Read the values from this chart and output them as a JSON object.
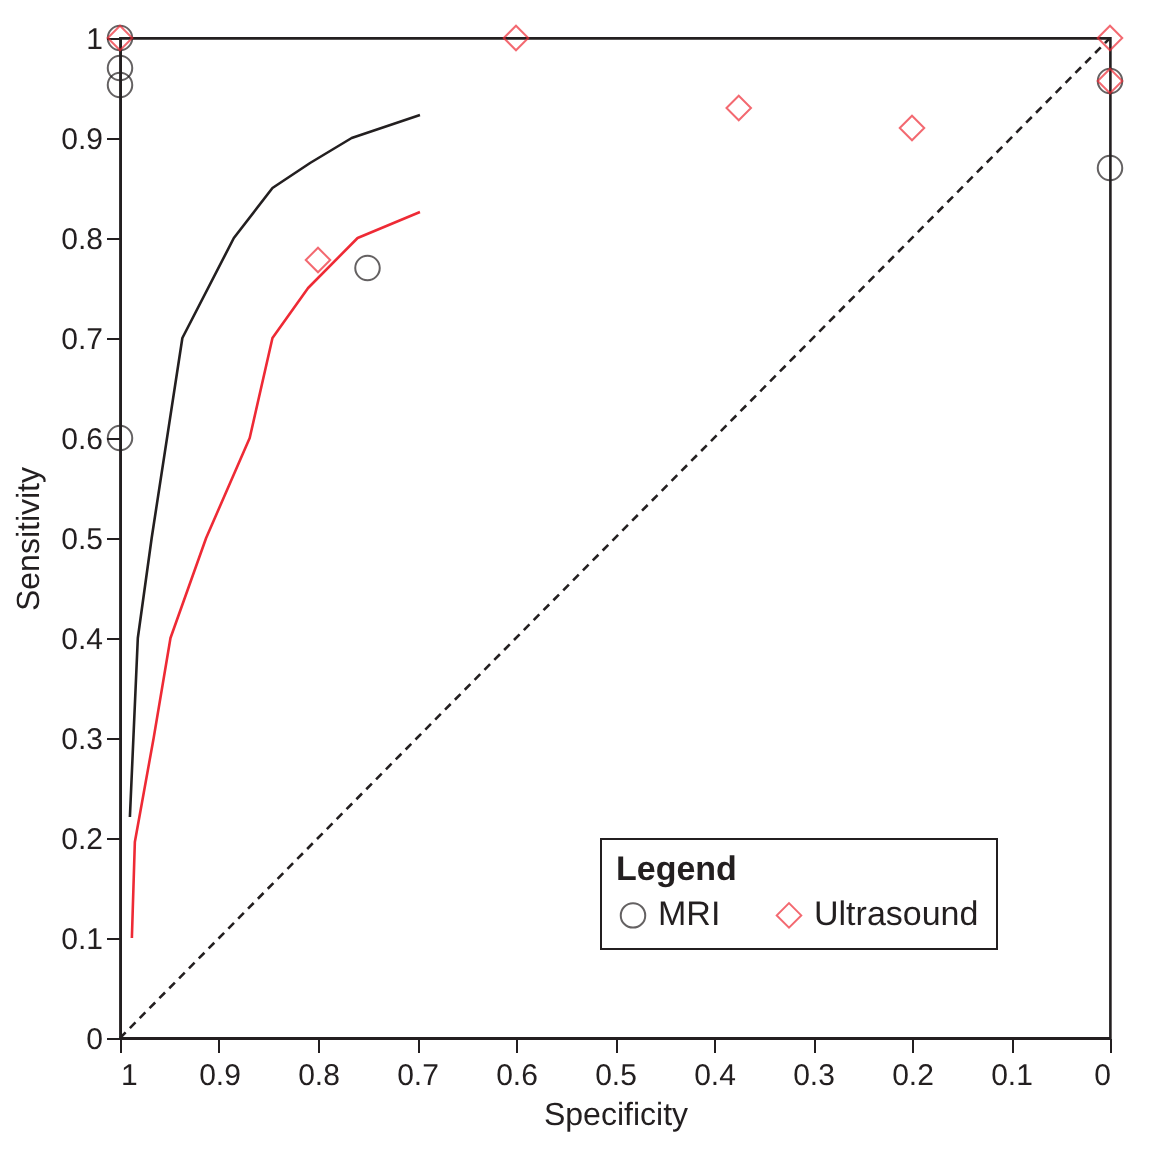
{
  "chart_data": {
    "type": "scatter",
    "xlabel": "Specificity",
    "ylabel": "Sensitivity",
    "legend_title": "Legend",
    "legend": "bottom right",
    "grid": false,
    "xlim": [
      1,
      0
    ],
    "xticks": [
      1,
      0.9,
      0.8,
      0.7,
      0.6,
      0.5,
      0.4,
      0.3,
      0.2,
      0.1,
      0
    ],
    "ylim": [
      0,
      1
    ],
    "yticks": [
      0,
      0.1,
      0.2,
      0.3,
      0.4,
      0.5,
      0.6,
      0.7,
      0.8,
      0.9,
      1
    ],
    "series": [
      {
        "name": "MRI",
        "marker": "circle",
        "color": "#231f20",
        "x": [
          1,
          1,
          1,
          1,
          0.75,
          0,
          0
        ],
        "values": [
          1,
          0.97,
          0.953,
          0.6,
          0.77,
          0.957,
          0.87
        ]
      },
      {
        "name": "Ultrasound",
        "marker": "diamond",
        "color": "#ee2a35",
        "x": [
          1,
          0.6,
          0.375,
          0.2,
          0.8,
          0,
          0
        ],
        "values": [
          1,
          1,
          0.93,
          0.91,
          0.778,
          1,
          0.957
        ]
      },
      {
        "type": "line",
        "line_style": "solid",
        "color": "#231f20",
        "x": [
          0.99,
          0.982,
          0.968,
          0.937,
          0.885,
          0.846,
          0.808,
          0.766,
          0.697
        ],
        "values": [
          0.221,
          0.4,
          0.5,
          0.7,
          0.8,
          0.85,
          0.875,
          0.9,
          0.923
        ]
      },
      {
        "type": "line",
        "line_style": "solid",
        "color": "#ee2a35",
        "x": [
          0.988,
          0.985,
          0.966,
          0.949,
          0.913,
          0.869,
          0.846,
          0.81,
          0.76,
          0.697
        ],
        "values": [
          0.1,
          0.196,
          0.3,
          0.4,
          0.5,
          0.6,
          0.7,
          0.75,
          0.8,
          0.826
        ]
      },
      {
        "type": "line",
        "line_style": "dashed",
        "color": "#231f20",
        "x": [
          1,
          0
        ],
        "values": [
          0,
          1
        ]
      }
    ]
  }
}
